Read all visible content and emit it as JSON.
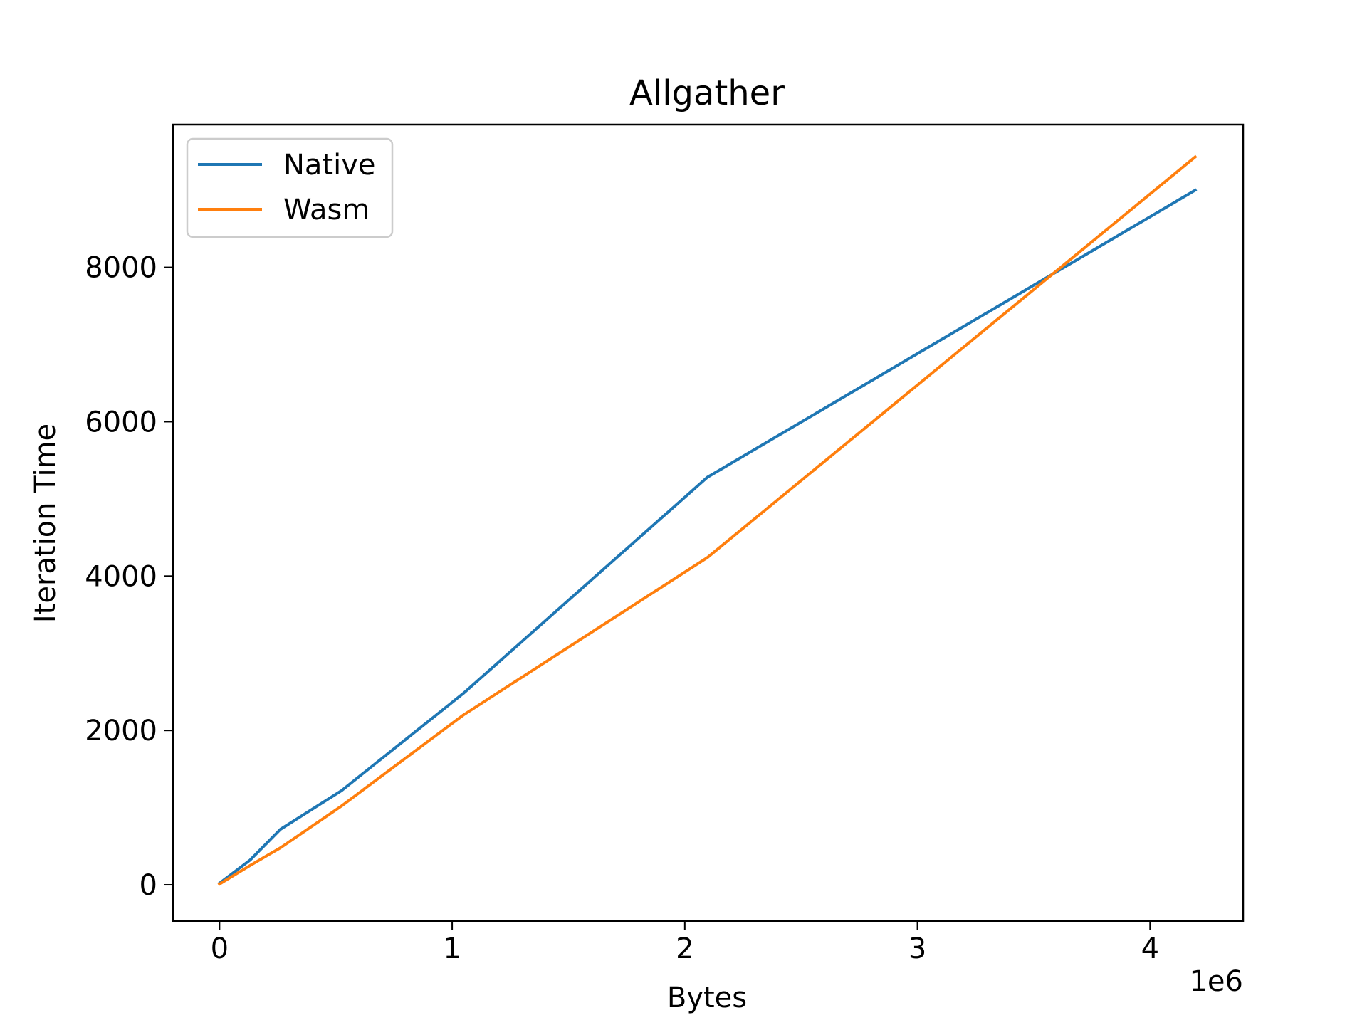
{
  "chart_data": {
    "type": "line",
    "title": "Allgather",
    "xlabel": "Bytes",
    "ylabel": "Iteration Time",
    "x_offset_label": "1e6",
    "x_multiplier": 1000000,
    "xlim": [
      -0.2,
      4.4
    ],
    "ylim": [
      -470,
      9850
    ],
    "xticks": [
      0,
      1,
      2,
      3,
      4
    ],
    "yticks": [
      0,
      2000,
      4000,
      6000,
      8000
    ],
    "legend_position": "upper-left",
    "grid": false,
    "series": [
      {
        "name": "Native",
        "color": "#1f77b4",
        "x": [
          0,
          0.131,
          0.262,
          0.524,
          1.048,
          2.097,
          4.194
        ],
        "y": [
          20,
          320,
          720,
          1220,
          2480,
          5280,
          9000
        ]
      },
      {
        "name": "Wasm",
        "color": "#ff7f0e",
        "x": [
          0,
          0.131,
          0.262,
          0.524,
          1.048,
          2.097,
          4.194
        ],
        "y": [
          10,
          250,
          480,
          1020,
          2200,
          4240,
          9430
        ]
      }
    ]
  }
}
